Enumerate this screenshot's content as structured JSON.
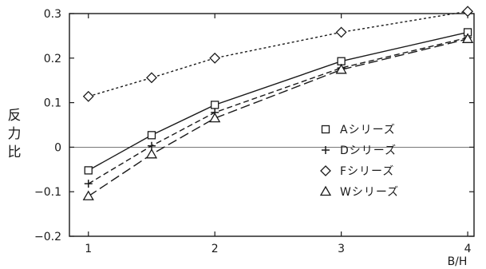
{
  "chart_data": {
    "type": "line",
    "xlabel": "B/H",
    "ylabel": "反力比",
    "xlim": [
      0.85,
      4.05
    ],
    "ylim": [
      -0.2,
      0.3
    ],
    "xticks": [
      1,
      2,
      3,
      4
    ],
    "yticks": [
      0.3,
      0.2,
      0.1,
      0,
      -0.1,
      -0.2
    ],
    "ytick_labels": [
      "0.3",
      "0.2",
      "0.1",
      "0",
      "−0.1",
      "−0.2"
    ],
    "grid": false,
    "zero_line": true,
    "legend_position": "right, inside plot",
    "series": [
      {
        "name": "Aシリーズ",
        "marker": "square",
        "line_style": "solid",
        "x": [
          1,
          1.5,
          2,
          3,
          4
        ],
        "y": [
          -0.052,
          0.027,
          0.095,
          0.193,
          0.258
        ]
      },
      {
        "name": "Dシリーズ",
        "marker": "plus",
        "line_style": "dashed",
        "x": [
          1,
          1.5,
          2,
          3,
          4
        ],
        "y": [
          -0.082,
          0.003,
          0.078,
          0.178,
          0.246
        ]
      },
      {
        "name": "Fシリーズ",
        "marker": "diamond",
        "line_style": "fine-dashed",
        "x": [
          1,
          1.5,
          2,
          3,
          4
        ],
        "y": [
          0.114,
          0.156,
          0.2,
          0.258,
          0.305
        ]
      },
      {
        "name": "Wシリーズ",
        "marker": "triangle",
        "line_style": "long-dashed",
        "x": [
          1,
          1.5,
          2,
          3,
          4
        ],
        "y": [
          -0.11,
          -0.016,
          0.065,
          0.174,
          0.243
        ]
      }
    ]
  }
}
